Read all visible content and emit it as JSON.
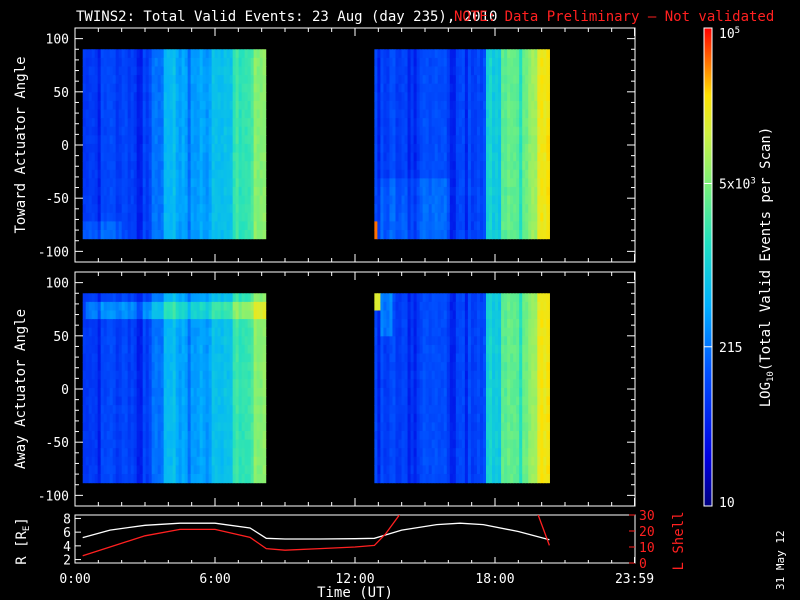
{
  "title": {
    "main": "TWINS2: Total Valid Events: 23 Aug (day 235), 2010",
    "note": "NOTE: Data Preliminary – Not validated"
  },
  "stamp": "31 May 12",
  "colors": {
    "background": "#000000",
    "axes": "#ffffff",
    "note": "#ff2020",
    "r_line": "#ffffff",
    "lshell_line": "#ff2020"
  },
  "chart_data": [
    {
      "type": "heatmap",
      "title": "",
      "ylabel": "Toward Actuator Angle",
      "xlim_hours": [
        0,
        24
      ],
      "ylim": [
        -110,
        110
      ],
      "yticks": [
        "100",
        "50",
        "0",
        "-50",
        "-100"
      ],
      "data_y_range": [
        -88,
        90
      ],
      "data_segments_hours": [
        [
          0.33,
          8.17
        ],
        [
          12.83,
          20.33
        ]
      ],
      "colorscale": "rainbow (log)",
      "notes": "values increase sharply after ~3.5 h and ~17.7 h; highest (yellow-orange) near 20 h; red patch near -80 deg at ~12.9 h"
    },
    {
      "type": "heatmap",
      "title": "",
      "ylabel": "Away Actuator Angle",
      "xlim_hours": [
        0,
        24
      ],
      "ylim": [
        -110,
        110
      ],
      "yticks": [
        "100",
        "50",
        "0",
        "-50",
        "-100"
      ],
      "data_y_range": [
        -88,
        90
      ],
      "data_segments_hours": [
        [
          0.33,
          8.17
        ],
        [
          12.83,
          20.33
        ]
      ],
      "colorscale": "rainbow (log)",
      "notes": "bright band near +75 deg from 0.5 to 8 h; yellow near +90 deg at 12.9 h; green-yellow near 20 h"
    },
    {
      "type": "line",
      "title": "",
      "xlabel": "Time (UT)",
      "xticks": [
        "0:00",
        "6:00",
        "12:00",
        "18:00",
        "23:59"
      ],
      "xtick_hours": [
        0,
        6,
        12,
        18,
        23.98
      ],
      "y_left": {
        "label": "R [RE]",
        "label_main": "R [R",
        "label_sub": "E",
        "label_end": "]",
        "ylim": [
          1.5,
          8.5
        ],
        "yticks": [
          "8",
          "6",
          "4",
          "2"
        ]
      },
      "y_right": {
        "label": "L Shell",
        "ylim": [
          0,
          30
        ],
        "yticks": [
          "30",
          "20",
          "10",
          "0"
        ]
      },
      "series": [
        {
          "name": "R",
          "axis": "left",
          "x": [
            0.33,
            1.5,
            3,
            4.5,
            6,
            7.5,
            8.2,
            9,
            10.5,
            12,
            12.83,
            14,
            15.5,
            16.5,
            17.5,
            19,
            20.33
          ],
          "y": [
            5.2,
            6.3,
            7.0,
            7.3,
            7.3,
            6.6,
            5.1,
            5.0,
            5.0,
            5.05,
            5.1,
            6.3,
            7.1,
            7.3,
            7.1,
            6.1,
            4.9
          ]
        },
        {
          "name": "L Shell",
          "axis": "right",
          "x": [
            0.33,
            1.5,
            3,
            4.5,
            6,
            7.5,
            8.2,
            9,
            10.5,
            12,
            12.83,
            13.3,
            14,
            19.8,
            20.33
          ],
          "y": [
            4.5,
            10,
            17,
            21,
            21,
            16,
            9,
            8,
            9,
            10,
            11,
            18,
            32,
            32,
            11
          ]
        }
      ]
    }
  ],
  "colorbar": {
    "label_main": "LOG",
    "label_sub": "10",
    "label_rest": "(Total Valid Events per Scan)",
    "ticks": [
      {
        "label": "10",
        "value": 10
      },
      {
        "label": "215",
        "value": 215
      },
      {
        "label_main": "5x10",
        "label_sup": "3",
        "value": 5000
      },
      {
        "label_main": "10",
        "label_sup": "5",
        "value": 100000
      }
    ],
    "range": [
      10,
      100000
    ]
  }
}
